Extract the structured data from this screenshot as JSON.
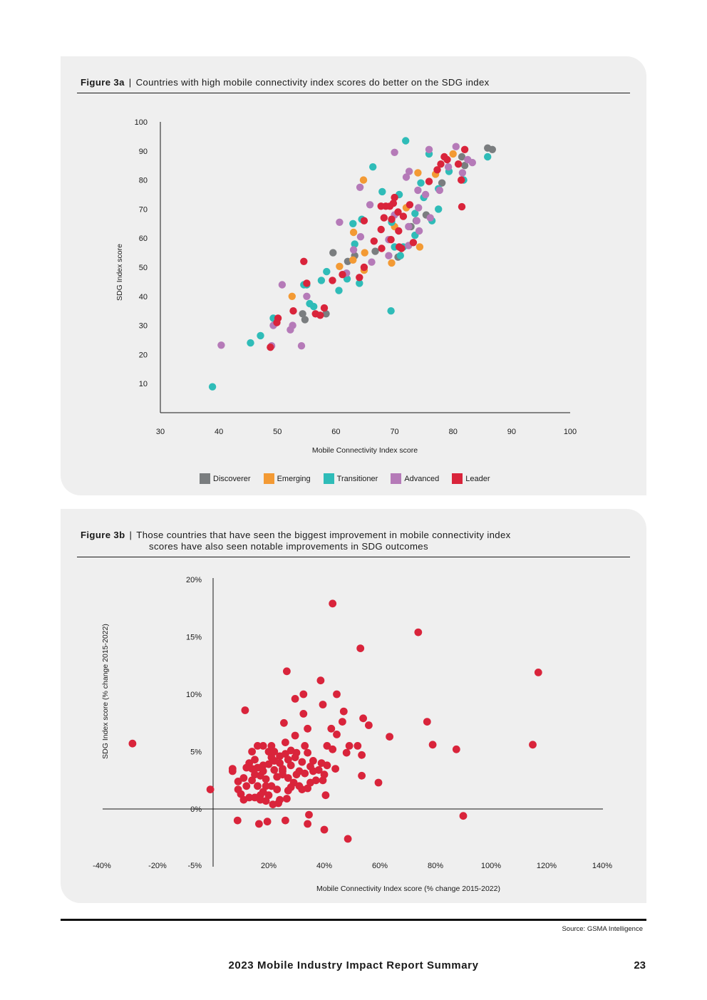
{
  "figure_a": {
    "label": "Figure 3a",
    "separator": "|",
    "title": "Countries with high mobile connectivity index scores do better on the SDG index",
    "legend": [
      {
        "name": "Discoverer",
        "color": "#7a7d7f"
      },
      {
        "name": "Emerging",
        "color": "#f39a34"
      },
      {
        "name": "Transitioner",
        "color": "#2fbcb8"
      },
      {
        "name": "Advanced",
        "color": "#b57ab8"
      },
      {
        "name": "Leader",
        "color": "#d9243b"
      }
    ]
  },
  "figure_b": {
    "label": "Figure 3b",
    "separator": "|",
    "title_line1": "Those countries that have seen the biggest improvement in mobile connectivity index",
    "title_line2": "scores have also seen notable improvements in SDG outcomes"
  },
  "chart_data": [
    {
      "type": "scatter",
      "title": "Countries with high mobile connectivity index scores do better on the SDG index",
      "xlabel": "Mobile Connectivity Index score",
      "ylabel": "SDG Index score",
      "xlim": [
        30,
        100
      ],
      "ylim": [
        0,
        100
      ],
      "xticks": [
        "30",
        "40",
        "50",
        "60",
        "70",
        "80",
        "90",
        "100"
      ],
      "yticks": [
        "10",
        "20",
        "30",
        "40",
        "50",
        "60",
        "70",
        "80",
        "90",
        "100"
      ],
      "series": [
        {
          "name": "Discoverer",
          "color": "#7a7d7f",
          "points": [
            [
              85.9,
              91
            ],
            [
              86.7,
              90.5
            ],
            [
              81.5,
              88
            ],
            [
              82,
              85
            ],
            [
              78.1,
              79
            ],
            [
              75.4,
              68
            ],
            [
              73.7,
              66
            ],
            [
              59.5,
              55
            ],
            [
              62,
              52
            ],
            [
              63.2,
              54
            ],
            [
              66.7,
              55.5
            ],
            [
              70.6,
              53.5
            ],
            [
              54.3,
              34
            ],
            [
              54.7,
              32
            ],
            [
              58.3,
              34
            ],
            [
              72.8,
              64
            ]
          ]
        },
        {
          "name": "Emerging",
          "color": "#f39a34",
          "points": [
            [
              80,
              89
            ],
            [
              77,
              82
            ],
            [
              74,
              82.5
            ],
            [
              64.7,
              80
            ],
            [
              72,
              70.5
            ],
            [
              63,
              62
            ],
            [
              70,
              64
            ],
            [
              64.9,
              55
            ],
            [
              62.9,
              52.5
            ],
            [
              60.6,
              50.3
            ],
            [
              64.8,
              49
            ],
            [
              69.5,
              51.5
            ],
            [
              74.3,
              57
            ],
            [
              52.5,
              40
            ]
          ]
        },
        {
          "name": "Transitioner",
          "color": "#2fbcb8",
          "points": [
            [
              38.9,
              8.9
            ],
            [
              71.9,
              93.5
            ],
            [
              75.9,
              89
            ],
            [
              85.9,
              88
            ],
            [
              66.3,
              84.5
            ],
            [
              79.3,
              83
            ],
            [
              81.8,
              80
            ],
            [
              74.5,
              79
            ],
            [
              67.9,
              76
            ],
            [
              70.8,
              75
            ],
            [
              75,
              74
            ],
            [
              77.5,
              77
            ],
            [
              73.5,
              68.5
            ],
            [
              77.5,
              70
            ],
            [
              76.4,
              66
            ],
            [
              69.5,
              65.5
            ],
            [
              62.9,
              65
            ],
            [
              64.4,
              66.5
            ],
            [
              73.5,
              61
            ],
            [
              63.2,
              58
            ],
            [
              70,
              57
            ],
            [
              71.5,
              57
            ],
            [
              64,
              44.5
            ],
            [
              61.9,
              46
            ],
            [
              60.5,
              42
            ],
            [
              57.5,
              45.5
            ],
            [
              54.5,
              44
            ],
            [
              55,
              44
            ],
            [
              58.4,
              48.5
            ],
            [
              55.5,
              37.5
            ],
            [
              56.2,
              36.5
            ],
            [
              49.3,
              32.5
            ],
            [
              47.1,
              26.5
            ],
            [
              45.4,
              24
            ],
            [
              69.4,
              35
            ],
            [
              71,
              54
            ]
          ]
        },
        {
          "name": "Advanced",
          "color": "#b57ab8",
          "points": [
            [
              80.5,
              91.5
            ],
            [
              75.9,
              90.5
            ],
            [
              70,
              89.5
            ],
            [
              82.5,
              87
            ],
            [
              83.3,
              86
            ],
            [
              79.2,
              84.5
            ],
            [
              81.6,
              82.5
            ],
            [
              72.5,
              83
            ],
            [
              72,
              81
            ],
            [
              77.7,
              76.5
            ],
            [
              75.3,
              75
            ],
            [
              74,
              76.5
            ],
            [
              64.1,
              77.5
            ],
            [
              65.8,
              71.5
            ],
            [
              74.1,
              70.5
            ],
            [
              70,
              68
            ],
            [
              73.8,
              66
            ],
            [
              76.1,
              67
            ],
            [
              72.4,
              64
            ],
            [
              74.2,
              62.5
            ],
            [
              64.2,
              60.5
            ],
            [
              60.6,
              65.5
            ],
            [
              69,
              59.5
            ],
            [
              72.4,
              57.5
            ],
            [
              63,
              56
            ],
            [
              69,
              54
            ],
            [
              61.8,
              48
            ],
            [
              66.1,
              51.8
            ],
            [
              50.8,
              44
            ],
            [
              55,
              40
            ],
            [
              52.6,
              30
            ],
            [
              49.3,
              30
            ],
            [
              52.2,
              28.5
            ],
            [
              49,
              23
            ],
            [
              54.1,
              23
            ],
            [
              40.4,
              23.2
            ]
          ]
        },
        {
          "name": "Leader",
          "color": "#d9243b",
          "points": [
            [
              82,
              90.5
            ],
            [
              77.3,
              83.5
            ],
            [
              78.5,
              88
            ],
            [
              79,
              87
            ],
            [
              80.9,
              85.5
            ],
            [
              77.9,
              85.5
            ],
            [
              81.4,
              80
            ],
            [
              75.9,
              79.5
            ],
            [
              70,
              74
            ],
            [
              69.8,
              72
            ],
            [
              72.6,
              71.5
            ],
            [
              70.6,
              69
            ],
            [
              71.5,
              67.5
            ],
            [
              68.5,
              71
            ],
            [
              67.7,
              71
            ],
            [
              69.2,
              71
            ],
            [
              68.2,
              67
            ],
            [
              69.5,
              66.5
            ],
            [
              64.8,
              66
            ],
            [
              67.7,
              63
            ],
            [
              70.7,
              62.5
            ],
            [
              73.2,
              58.5
            ],
            [
              69.4,
              59.5
            ],
            [
              66.5,
              59
            ],
            [
              67.8,
              56.5
            ],
            [
              71.2,
              56.5
            ],
            [
              70.8,
              57
            ],
            [
              64.8,
              50
            ],
            [
              64,
              46.5
            ],
            [
              61.1,
              47.5
            ],
            [
              59.4,
              45.5
            ],
            [
              54.5,
              52
            ],
            [
              55,
              44.5
            ],
            [
              58,
              36
            ],
            [
              56.5,
              34
            ],
            [
              57.3,
              33.5
            ],
            [
              52.7,
              35
            ],
            [
              50.1,
              32.5
            ],
            [
              49.9,
              31
            ],
            [
              48.8,
              22.5
            ],
            [
              81.5,
              70.8
            ]
          ]
        }
      ]
    },
    {
      "type": "scatter",
      "title": "Those countries that have seen the biggest improvement in mobile connectivity index scores have also seen notable improvements in SDG outcomes",
      "xlabel": "Mobile Connectivity Index score (% change 2015-2022)",
      "ylabel": "SDG Index score (% change 2015-2022)",
      "xlim": [
        -40,
        140
      ],
      "ylim": [
        -5,
        20
      ],
      "xticks": [
        "-40%",
        "-20%",
        "20%",
        "40%",
        "60%",
        "80%",
        "100%",
        "120%",
        "140%"
      ],
      "yticks": [
        "-5%",
        "0%",
        "5%",
        "10%",
        "15%",
        "20%"
      ],
      "color": "#d9243b",
      "points": [
        [
          -29,
          5.7
        ],
        [
          -1,
          1.7
        ],
        [
          8.8,
          -1
        ],
        [
          11.5,
          8.6
        ],
        [
          43,
          17.9
        ],
        [
          53,
          14
        ],
        [
          73.8,
          15.4
        ],
        [
          117,
          11.9
        ],
        [
          26.5,
          12
        ],
        [
          38.7,
          11.2
        ],
        [
          32.5,
          10
        ],
        [
          44.5,
          10
        ],
        [
          29.5,
          9.6
        ],
        [
          39.5,
          9.1
        ],
        [
          47,
          8.5
        ],
        [
          32.5,
          8.3
        ],
        [
          46.5,
          7.6
        ],
        [
          54,
          7.9
        ],
        [
          56,
          7.3
        ],
        [
          25.5,
          7.5
        ],
        [
          34,
          7
        ],
        [
          42.5,
          7
        ],
        [
          44.5,
          6.5
        ],
        [
          29.5,
          6.4
        ],
        [
          26,
          5.8
        ],
        [
          41,
          5.5
        ],
        [
          49,
          5.5
        ],
        [
          52,
          5.5
        ],
        [
          63.5,
          6.3
        ],
        [
          77,
          7.6
        ],
        [
          79,
          5.6
        ],
        [
          87.5,
          5.2
        ],
        [
          115,
          5.6
        ],
        [
          53.5,
          4.7
        ],
        [
          48,
          4.9
        ],
        [
          29.5,
          4.5
        ],
        [
          34,
          4.9
        ],
        [
          33,
          5.5
        ],
        [
          43,
          5.2
        ],
        [
          39,
          4
        ],
        [
          41,
          3.8
        ],
        [
          44,
          3.5
        ],
        [
          40,
          3
        ],
        [
          38,
          3.4
        ],
        [
          36,
          3.3
        ],
        [
          31,
          3.3
        ],
        [
          28,
          3.8
        ],
        [
          25,
          3.5
        ],
        [
          53.5,
          2.9
        ],
        [
          59.5,
          2.3
        ],
        [
          35,
          2.3
        ],
        [
          37,
          2.5
        ],
        [
          39.5,
          2.5
        ],
        [
          32,
          1.7
        ],
        [
          34,
          1.8
        ],
        [
          27,
          1.6
        ],
        [
          29,
          2.3
        ],
        [
          40.5,
          1.2
        ],
        [
          26.5,
          0.9
        ],
        [
          23.5,
          0.5
        ],
        [
          21.5,
          0.4
        ],
        [
          19,
          0.7
        ],
        [
          15,
          1
        ],
        [
          7,
          3.3
        ],
        [
          7,
          3.5
        ],
        [
          9,
          1.7
        ],
        [
          10,
          1.3
        ],
        [
          11,
          2.7
        ],
        [
          13,
          4
        ],
        [
          14,
          3.5
        ],
        [
          15,
          4.3
        ],
        [
          16,
          3.6
        ],
        [
          17,
          2.9
        ],
        [
          18,
          3.3
        ],
        [
          19,
          2.6
        ],
        [
          20,
          3.9
        ],
        [
          21,
          4.5
        ],
        [
          22,
          3.4
        ],
        [
          23,
          2.8
        ],
        [
          24,
          4.6
        ],
        [
          25,
          3
        ],
        [
          21,
          2
        ],
        [
          18,
          1.5
        ],
        [
          16,
          2
        ],
        [
          12,
          2
        ],
        [
          14,
          5
        ],
        [
          16,
          5.5
        ],
        [
          18,
          5.5
        ],
        [
          20,
          5
        ],
        [
          22,
          5
        ],
        [
          24,
          4
        ],
        [
          26,
          4.8
        ],
        [
          28,
          5.1
        ],
        [
          30,
          4.9
        ],
        [
          32,
          4.1
        ],
        [
          20,
          1.2
        ],
        [
          13,
          1
        ],
        [
          11,
          0.8
        ],
        [
          14,
          2.5
        ],
        [
          17,
          1.2
        ],
        [
          19,
          2
        ],
        [
          23,
          1.7
        ],
        [
          27,
          2.7
        ],
        [
          28,
          1.9
        ],
        [
          30,
          3
        ],
        [
          31,
          2
        ],
        [
          36,
          4.2
        ],
        [
          33,
          3.1
        ],
        [
          21,
          5.5
        ],
        [
          24,
          0.8
        ],
        [
          17,
          0.8
        ],
        [
          34.5,
          -0.5
        ],
        [
          34,
          -1.3
        ],
        [
          40,
          -1.8
        ],
        [
          48.5,
          -2.6
        ],
        [
          16.5,
          -1.3
        ],
        [
          19.5,
          -1.1
        ],
        [
          26,
          -1
        ],
        [
          90,
          -0.6
        ],
        [
          22,
          4.2
        ],
        [
          25,
          3.3
        ],
        [
          27,
          4.3
        ],
        [
          18,
          3.8
        ],
        [
          15,
          3
        ],
        [
          12,
          3.6
        ],
        [
          9,
          2.4
        ],
        [
          35,
          3.7
        ]
      ]
    }
  ],
  "footer": {
    "source": "Source: GSMA Intelligence",
    "report_title": "2023 Mobile Industry Impact Report Summary",
    "page_number": "23"
  }
}
